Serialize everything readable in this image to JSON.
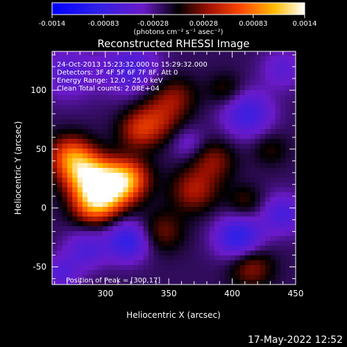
{
  "chart_data": {
    "type": "heatmap",
    "title": "Reconstructed RHESSI Image",
    "xlabel": "Heliocentric X (arcsec)",
    "ylabel": "Heliocentric Y (arcsec)",
    "xlim": [
      258,
      450
    ],
    "ylim": [
      -65,
      133
    ],
    "x_ticks": [
      300,
      350,
      400,
      450
    ],
    "y_ticks": [
      -50,
      0,
      50,
      100
    ],
    "info_lines": [
      "24-Oct-2013 15:23:32.000 to 15:29:32.000",
      "Detectors: 3F 4F 5F 6F 7F 8F, Att 0",
      "Energy Range: 12.0 - 25.0 keV",
      "Clean     Total counts: 2.08E+04"
    ],
    "peak_label": "Position of Peak = [300,17]",
    "peak_position": [
      300,
      17
    ],
    "colorbar": {
      "range": [
        -0.0014,
        0.0014
      ],
      "tick_labels": [
        "-0.0014",
        "-0.00083",
        "-0.00028",
        "0.00028",
        "0.00083",
        "0.0014"
      ],
      "tick_values": [
        -0.0014,
        -0.00083,
        -0.00028,
        0.00028,
        0.00083,
        0.0014
      ],
      "unit_label": "(photons cm⁻² s⁻¹ asec⁻²)"
    },
    "blobs": [
      {
        "x": 300,
        "y": 17,
        "amp": 0.0014,
        "sigma": 14
      },
      {
        "x": 283,
        "y": 30,
        "amp": 0.00095,
        "sigma": 13
      },
      {
        "x": 318,
        "y": 25,
        "amp": 0.00085,
        "sigma": 12
      },
      {
        "x": 272,
        "y": 45,
        "amp": 0.00075,
        "sigma": 12
      },
      {
        "x": 290,
        "y": 2,
        "amp": 0.0007,
        "sigma": 12
      },
      {
        "x": 340,
        "y": 75,
        "amp": 0.00055,
        "sigma": 14
      },
      {
        "x": 325,
        "y": 65,
        "amp": 0.00045,
        "sigma": 11
      },
      {
        "x": 355,
        "y": 95,
        "amp": 0.0004,
        "sigma": 12
      },
      {
        "x": 370,
        "y": 15,
        "amp": 0.00055,
        "sigma": 13
      },
      {
        "x": 385,
        "y": 40,
        "amp": 0.00045,
        "sigma": 12
      },
      {
        "x": 345,
        "y": -20,
        "amp": 0.0004,
        "sigma": 12
      },
      {
        "x": 415,
        "y": -50,
        "amp": 0.0005,
        "sigma": 12
      },
      {
        "x": 410,
        "y": 5,
        "amp": 0.0003,
        "sigma": 10
      },
      {
        "x": 395,
        "y": 100,
        "amp": 0.0003,
        "sigma": 10
      },
      {
        "x": 430,
        "y": 50,
        "amp": 0.00025,
        "sigma": 10
      },
      {
        "x": 270,
        "y": 115,
        "amp": -0.0004,
        "sigma": 16
      },
      {
        "x": 320,
        "y": 118,
        "amp": -0.0005,
        "sigma": 16
      },
      {
        "x": 318,
        "y": -28,
        "amp": -0.0007,
        "sigma": 12
      },
      {
        "x": 285,
        "y": -35,
        "amp": -0.00045,
        "sigma": 12
      },
      {
        "x": 405,
        "y": -25,
        "amp": -0.00075,
        "sigma": 13
      },
      {
        "x": 412,
        "y": 80,
        "amp": -0.0006,
        "sigma": 14
      },
      {
        "x": 440,
        "y": -5,
        "amp": -0.0005,
        "sigma": 12
      },
      {
        "x": 365,
        "y": 55,
        "amp": -0.0003,
        "sigma": 10
      },
      {
        "x": 265,
        "y": -55,
        "amp": -0.0004,
        "sigma": 10
      },
      {
        "x": 440,
        "y": 118,
        "amp": -0.00035,
        "sigma": 12
      }
    ]
  },
  "timestamp": "17-May-2022 12:52"
}
